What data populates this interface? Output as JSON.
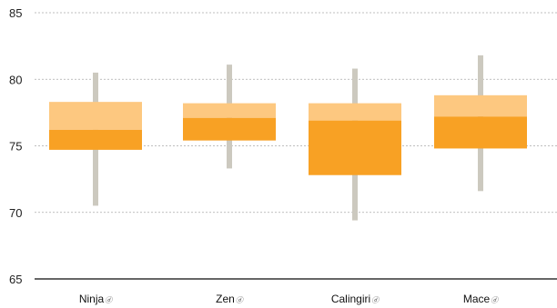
{
  "chart_data": {
    "type": "boxplot",
    "title": "",
    "xlabel": "",
    "ylabel": "",
    "ylim": [
      65,
      85
    ],
    "yticks": [
      65,
      70,
      75,
      80,
      85
    ],
    "grid": true,
    "categories": [
      "Ninja",
      "Zen",
      "Calingiri",
      "Mace"
    ],
    "category_marker": "ⓓ",
    "boxes": [
      {
        "name": "Ninja",
        "min": 70.5,
        "q1": 74.7,
        "median": 76.2,
        "q3": 78.3,
        "max": 80.5
      },
      {
        "name": "Zen",
        "min": 73.3,
        "q1": 75.4,
        "median": 77.1,
        "q3": 78.2,
        "max": 81.1
      },
      {
        "name": "Calingiri",
        "min": 69.4,
        "q1": 72.8,
        "median": 76.9,
        "q3": 78.2,
        "max": 80.8
      },
      {
        "name": "Mace",
        "min": 71.6,
        "q1": 74.8,
        "median": 77.2,
        "q3": 78.8,
        "max": 81.8
      }
    ],
    "colors": {
      "upper_box": "#fdc880",
      "lower_box": "#f8a124",
      "whisker": "#ccc9bf",
      "grid": "#aaaaaa",
      "axis": "#333333"
    }
  }
}
